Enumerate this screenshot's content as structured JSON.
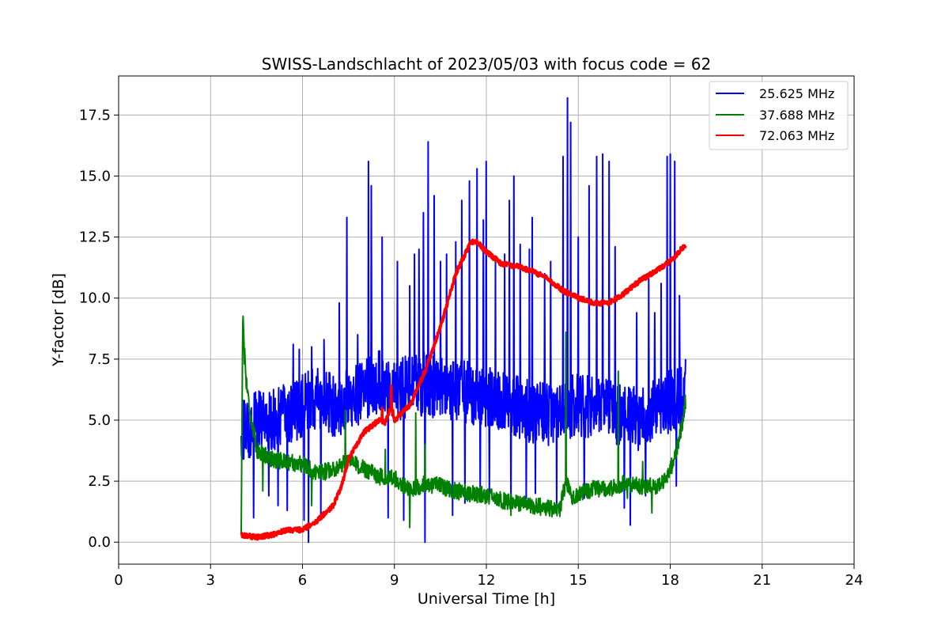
{
  "chart_data": {
    "type": "line",
    "title": "SWISS-Landschlacht of 2023/05/03 with focus code = 62",
    "xlabel": "Universal Time [h]",
    "ylabel": "Y-factor [dB]",
    "xlim": [
      0,
      24
    ],
    "ylim": [
      -0.9,
      19.1
    ],
    "xticks": [
      0,
      3,
      6,
      9,
      12,
      15,
      18,
      21,
      24
    ],
    "xtick_labels": [
      "0",
      "3",
      "6",
      "9",
      "12",
      "15",
      "18",
      "21",
      "24"
    ],
    "yticks": [
      0,
      2.5,
      5,
      7.5,
      10,
      12.5,
      15,
      17.5
    ],
    "ytick_labels": [
      "0.0",
      "2.5",
      "5.0",
      "7.5",
      "10.0",
      "12.5",
      "15.0",
      "17.5"
    ],
    "grid": true,
    "legend_position": "top-right",
    "series": [
      {
        "name": "25.625 MHz",
        "color": "#0000ff",
        "line_width": 2,
        "base": [
          [
            4.0,
            4.5
          ],
          [
            4.5,
            4.9
          ],
          [
            5.0,
            5.0
          ],
          [
            5.5,
            5.2
          ],
          [
            6.0,
            5.6
          ],
          [
            6.5,
            5.9
          ],
          [
            7.0,
            5.6
          ],
          [
            7.5,
            5.8
          ],
          [
            8.0,
            6.2
          ],
          [
            8.5,
            6.6
          ],
          [
            9.0,
            6.2
          ],
          [
            9.5,
            6.4
          ],
          [
            10.0,
            6.5
          ],
          [
            10.5,
            6.3
          ],
          [
            11.0,
            6.2
          ],
          [
            11.5,
            6.1
          ],
          [
            12.0,
            6.0
          ],
          [
            12.5,
            5.8
          ],
          [
            13.0,
            5.6
          ],
          [
            13.5,
            5.3
          ],
          [
            14.0,
            5.2
          ],
          [
            14.5,
            5.5
          ],
          [
            15.0,
            5.6
          ],
          [
            15.5,
            5.5
          ],
          [
            16.0,
            5.4
          ],
          [
            16.5,
            5.2
          ],
          [
            17.0,
            5.0
          ],
          [
            17.5,
            5.4
          ],
          [
            18.0,
            5.8
          ],
          [
            18.5,
            5.9
          ]
        ],
        "noise_amplitude": 1.3,
        "spikes": [
          [
            4.1,
            5.8
          ],
          [
            5.7,
            8.1
          ],
          [
            5.9,
            7.9
          ],
          [
            6.3,
            8.0
          ],
          [
            6.7,
            8.3
          ],
          [
            7.2,
            9.8
          ],
          [
            7.45,
            13.3
          ],
          [
            7.8,
            8.5
          ],
          [
            8.15,
            15.6
          ],
          [
            8.25,
            14.6
          ],
          [
            8.6,
            12.5
          ],
          [
            8.8,
            9.5
          ],
          [
            9.1,
            11.5
          ],
          [
            9.3,
            11.0
          ],
          [
            9.5,
            10.5
          ],
          [
            9.65,
            11.8
          ],
          [
            9.8,
            12.0
          ],
          [
            9.95,
            13.5
          ],
          [
            10.1,
            16.4
          ],
          [
            10.3,
            14.2
          ],
          [
            10.5,
            11.5
          ],
          [
            10.7,
            11.8
          ],
          [
            10.9,
            12.3
          ],
          [
            11.0,
            12.3
          ],
          [
            11.2,
            14.0
          ],
          [
            11.45,
            14.8
          ],
          [
            11.7,
            15.3
          ],
          [
            11.9,
            13.2
          ],
          [
            12.0,
            15.6
          ],
          [
            12.3,
            11.5
          ],
          [
            12.6,
            11.8
          ],
          [
            12.75,
            14.0
          ],
          [
            12.9,
            15.0
          ],
          [
            13.1,
            12.2
          ],
          [
            13.4,
            12.0
          ],
          [
            13.5,
            13.3
          ],
          [
            13.9,
            11.0
          ],
          [
            14.1,
            11.5
          ],
          [
            14.3,
            10.2
          ],
          [
            14.5,
            15.8
          ],
          [
            14.65,
            18.2
          ],
          [
            14.75,
            17.2
          ],
          [
            15.0,
            12.5
          ],
          [
            15.2,
            14.0
          ],
          [
            15.35,
            14.6
          ],
          [
            15.6,
            15.8
          ],
          [
            15.8,
            15.9
          ],
          [
            16.0,
            15.6
          ],
          [
            16.2,
            12.1
          ],
          [
            16.7,
            9.1
          ],
          [
            16.9,
            9.4
          ],
          [
            17.3,
            10.8
          ],
          [
            17.5,
            9.4
          ],
          [
            17.7,
            10.6
          ],
          [
            17.9,
            15.8
          ],
          [
            18.0,
            15.9
          ],
          [
            18.15,
            15.6
          ],
          [
            18.3,
            10.1
          ],
          [
            18.5,
            7.5
          ]
        ],
        "dips": [
          [
            4.4,
            1.0
          ],
          [
            4.9,
            1.9
          ],
          [
            5.2,
            1.5
          ],
          [
            5.5,
            1.3
          ],
          [
            6.05,
            0.9
          ],
          [
            6.2,
            0.0
          ],
          [
            6.6,
            1.1
          ],
          [
            8.8,
            1.0
          ],
          [
            9.3,
            0.9
          ],
          [
            10.0,
            0.0
          ],
          [
            10.9,
            1.1
          ],
          [
            11.3,
            1.6
          ],
          [
            11.8,
            1.8
          ],
          [
            12.1,
            2.0
          ],
          [
            12.8,
            1.6
          ],
          [
            13.3,
            1.8
          ],
          [
            13.6,
            2.0
          ],
          [
            14.3,
            1.5
          ],
          [
            15.2,
            1.8
          ],
          [
            16.5,
            1.4
          ],
          [
            16.7,
            0.7
          ],
          [
            17.2,
            1.9
          ],
          [
            18.2,
            2.3
          ]
        ]
      },
      {
        "name": "37.688 MHz",
        "color": "#008000",
        "line_width": 2,
        "base": [
          [
            4.0,
            0.3
          ],
          [
            4.05,
            9.3
          ],
          [
            4.15,
            6.8
          ],
          [
            4.3,
            5.2
          ],
          [
            4.5,
            3.8
          ],
          [
            5.0,
            3.4
          ],
          [
            5.5,
            3.3
          ],
          [
            6.0,
            3.2
          ],
          [
            6.5,
            2.8
          ],
          [
            7.0,
            3.0
          ],
          [
            7.5,
            3.3
          ],
          [
            8.0,
            3.0
          ],
          [
            8.5,
            2.7
          ],
          [
            9.0,
            2.6
          ],
          [
            9.5,
            2.1
          ],
          [
            10.0,
            2.4
          ],
          [
            10.5,
            2.3
          ],
          [
            11.0,
            2.1
          ],
          [
            11.5,
            2.0
          ],
          [
            12.0,
            1.9
          ],
          [
            12.5,
            1.7
          ],
          [
            13.0,
            1.6
          ],
          [
            13.5,
            1.5
          ],
          [
            14.0,
            1.4
          ],
          [
            14.4,
            1.3
          ],
          [
            14.6,
            2.6
          ],
          [
            14.8,
            1.8
          ],
          [
            15.0,
            2.0
          ],
          [
            15.5,
            2.2
          ],
          [
            16.0,
            2.2
          ],
          [
            16.5,
            2.4
          ],
          [
            17.0,
            2.3
          ],
          [
            17.5,
            2.3
          ],
          [
            17.9,
            2.6
          ],
          [
            18.1,
            3.3
          ],
          [
            18.3,
            4.2
          ],
          [
            18.5,
            5.8
          ]
        ],
        "noise_amplitude": 0.35,
        "spikes": [
          [
            4.1,
            7.3
          ],
          [
            7.4,
            5.4
          ],
          [
            8.7,
            3.8
          ],
          [
            9.7,
            5.3
          ],
          [
            10.0,
            4.0
          ],
          [
            14.6,
            8.6
          ],
          [
            16.3,
            7.0
          ],
          [
            17.1,
            3.3
          ]
        ],
        "dips": [
          [
            4.7,
            2.1
          ],
          [
            6.3,
            1.5
          ],
          [
            9.5,
            0.6
          ],
          [
            12.8,
            1.1
          ],
          [
            16.6,
            1.8
          ],
          [
            17.4,
            1.2
          ]
        ]
      },
      {
        "name": "72.063 MHz",
        "color": "#ff0000",
        "line_width": 3.5,
        "base": [
          [
            4.0,
            0.3
          ],
          [
            4.5,
            0.2
          ],
          [
            5.0,
            0.3
          ],
          [
            5.5,
            0.5
          ],
          [
            6.0,
            0.5
          ],
          [
            6.5,
            0.9
          ],
          [
            7.0,
            1.5
          ],
          [
            7.3,
            2.4
          ],
          [
            7.5,
            3.4
          ],
          [
            8.0,
            4.5
          ],
          [
            8.5,
            5.0
          ],
          [
            8.7,
            4.9
          ],
          [
            8.9,
            5.6
          ],
          [
            9.0,
            5.0
          ],
          [
            9.5,
            5.6
          ],
          [
            10.0,
            7.0
          ],
          [
            10.5,
            8.8
          ],
          [
            11.0,
            11.0
          ],
          [
            11.5,
            12.3
          ],
          [
            11.7,
            12.3
          ],
          [
            12.0,
            11.9
          ],
          [
            12.5,
            11.4
          ],
          [
            13.0,
            11.3
          ],
          [
            13.5,
            11.1
          ],
          [
            14.0,
            10.8
          ],
          [
            14.5,
            10.3
          ],
          [
            15.0,
            10.0
          ],
          [
            15.5,
            9.8
          ],
          [
            16.0,
            9.8
          ],
          [
            16.5,
            10.2
          ],
          [
            17.0,
            10.7
          ],
          [
            17.5,
            11.1
          ],
          [
            18.0,
            11.5
          ],
          [
            18.5,
            12.2
          ]
        ],
        "noise_amplitude": 0.1,
        "spikes": [
          [
            8.9,
            6.4
          ],
          [
            8.6,
            5.5
          ]
        ],
        "dips": []
      }
    ]
  }
}
